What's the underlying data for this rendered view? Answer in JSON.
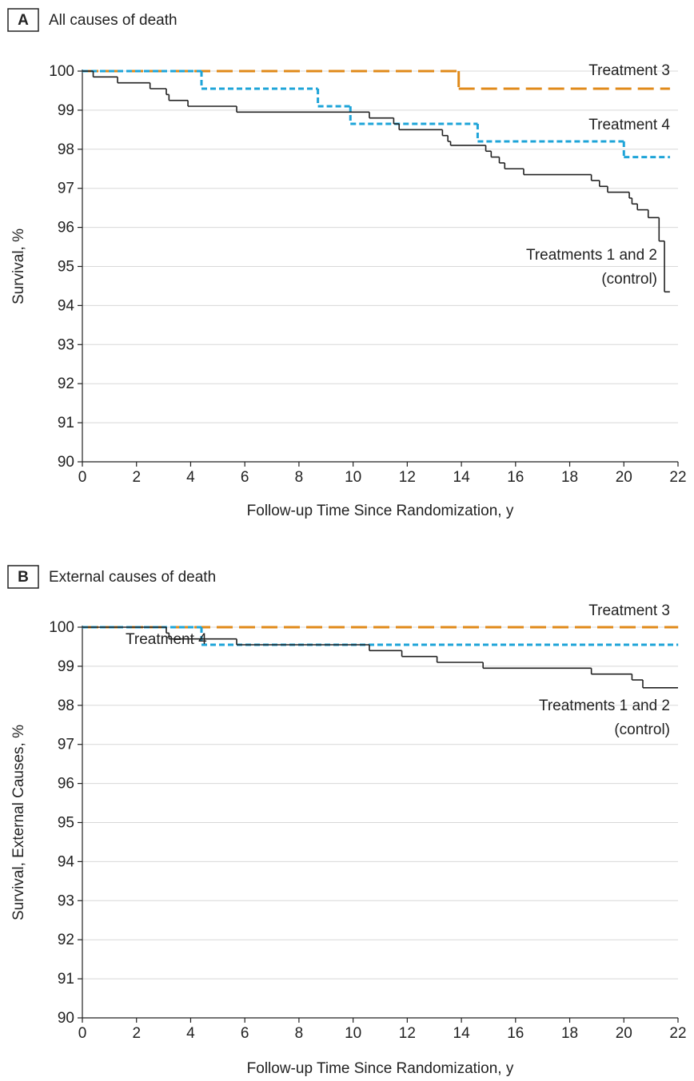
{
  "chart_data": [
    {
      "type": "step",
      "panel": "A",
      "title": "All causes of death",
      "x_label": "Follow-up Time Since Randomization, y",
      "y_label": "Survival, %",
      "xlim": [
        0,
        22
      ],
      "ylim": [
        90,
        100
      ],
      "xticks": [
        0,
        2,
        4,
        6,
        8,
        10,
        12,
        14,
        16,
        18,
        20,
        22
      ],
      "yticks": [
        90,
        91,
        92,
        93,
        94,
        95,
        96,
        97,
        98,
        99,
        100
      ],
      "grid": true,
      "series": [
        {
          "name": "Treatment 3",
          "color": "#e08a1a",
          "dash": "long",
          "x": [
            0,
            13.9,
            21.7
          ],
          "values": [
            100,
            99.55,
            99.55
          ]
        },
        {
          "name": "Treatment 4",
          "color": "#1ea4d8",
          "dash": "short",
          "x": [
            0,
            4.4,
            8.7,
            9.9,
            14.6,
            20,
            21.7
          ],
          "values": [
            100,
            99.55,
            99.1,
            98.65,
            98.2,
            97.8,
            97.8
          ]
        },
        {
          "name": "Treatments 1 and 2\n(control)",
          "color": "#222222",
          "dash": "solid",
          "x": [
            0,
            0.4,
            1.3,
            2.5,
            3.1,
            3.2,
            3.9,
            5.7,
            10.6,
            11.5,
            11.7,
            13.3,
            13.5,
            13.6,
            14.9,
            15.1,
            15.4,
            15.6,
            16.3,
            18.8,
            19.1,
            19.4,
            20.2,
            20.3,
            20.5,
            20.9,
            21.3,
            21.5,
            21.7
          ],
          "values": [
            100,
            99.85,
            99.7,
            99.55,
            99.4,
            99.25,
            99.1,
            98.95,
            98.8,
            98.65,
            98.5,
            98.35,
            98.2,
            98.1,
            97.95,
            97.8,
            97.65,
            97.5,
            97.35,
            97.2,
            97.05,
            96.9,
            96.75,
            96.6,
            96.45,
            96.25,
            95.65,
            94.35,
            94.35
          ]
        }
      ]
    },
    {
      "type": "step",
      "panel": "B",
      "title": "External causes of death",
      "x_label": "Follow-up Time Since Randomization, y",
      "y_label": "Survival, External Causes, %",
      "xlim": [
        0,
        22
      ],
      "ylim": [
        90,
        100
      ],
      "xticks": [
        0,
        2,
        4,
        6,
        8,
        10,
        12,
        14,
        16,
        18,
        20,
        22
      ],
      "yticks": [
        90,
        91,
        92,
        93,
        94,
        95,
        96,
        97,
        98,
        99,
        100
      ],
      "grid": true,
      "series": [
        {
          "name": "Treatment 3",
          "color": "#e08a1a",
          "dash": "long",
          "x": [
            0,
            22
          ],
          "values": [
            100,
            100
          ]
        },
        {
          "name": "Treatment 4",
          "color": "#1ea4d8",
          "dash": "short",
          "x": [
            0,
            4.4,
            22
          ],
          "values": [
            100,
            99.55,
            99.55
          ]
        },
        {
          "name": "Treatments 1 and 2\n(control)",
          "color": "#222222",
          "dash": "solid",
          "x": [
            0,
            3.1,
            3.2,
            5.7,
            10.6,
            11.8,
            13.1,
            14.8,
            18.8,
            20.3,
            20.7,
            22
          ],
          "values": [
            100,
            99.85,
            99.7,
            99.55,
            99.4,
            99.25,
            99.1,
            98.95,
            98.8,
            98.65,
            98.45,
            98.45
          ]
        }
      ]
    }
  ]
}
